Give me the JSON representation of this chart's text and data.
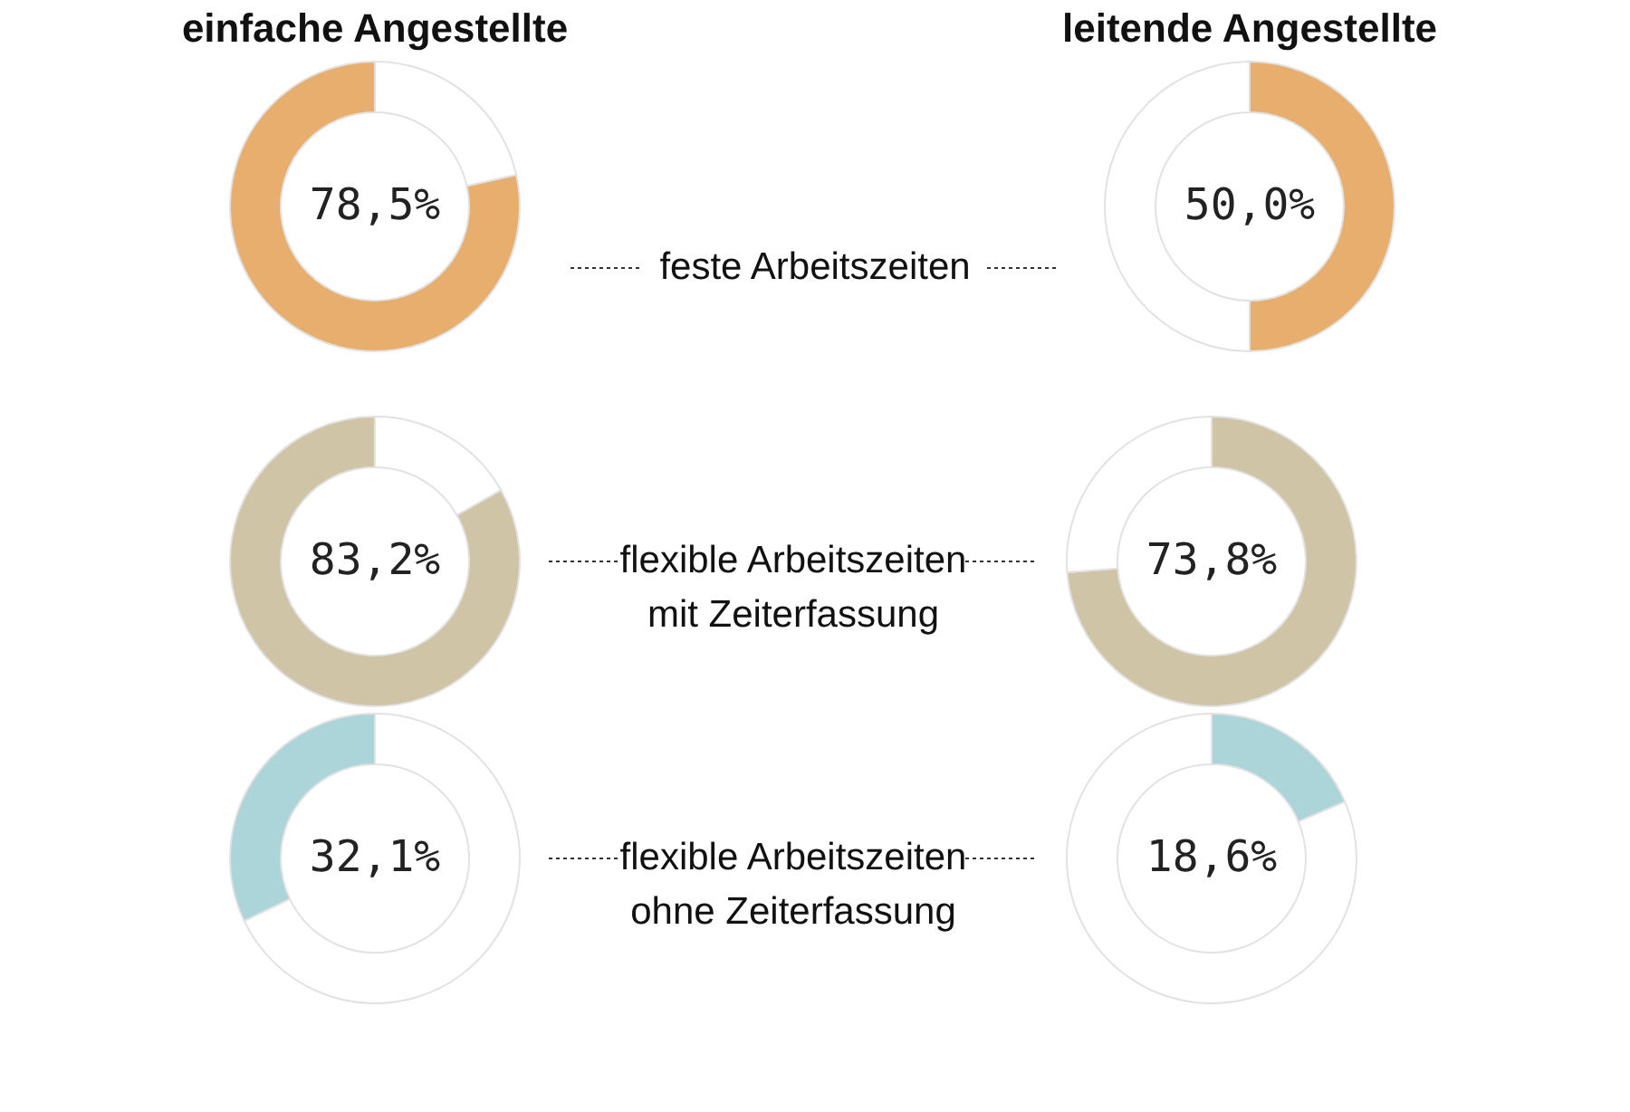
{
  "chart_data": [
    {
      "type": "donut",
      "title": "einfache Angestellte",
      "categories": [
        null,
        null
      ],
      "values": [
        78.5,
        21.5
      ],
      "colors": [
        "#e8ae6e",
        "#ffffff"
      ],
      "value_labels": [
        "78,5%",
        null
      ],
      "annotations": [
        "feste Arbeitszeiten"
      ]
    },
    {
      "type": "donut",
      "title": "leitende Angestellte",
      "categories": [
        null,
        null
      ],
      "values": [
        50.0,
        50.0
      ],
      "colors": [
        "#e8ae6e",
        "#ffffff"
      ],
      "value_labels": [
        "50,0%",
        null
      ]
    },
    {
      "type": "donut",
      "categories": [
        null,
        null
      ],
      "values": [
        83.2,
        16.8
      ],
      "colors": [
        "#cfc4a6",
        "#ffffff"
      ],
      "value_labels": [
        "83,2%",
        null
      ],
      "annotations": [
        "flexible Arbeitszeiten\nmit Zeiterfassung"
      ]
    },
    {
      "type": "donut",
      "categories": [
        null,
        null
      ],
      "values": [
        73.8,
        26.2
      ],
      "colors": [
        "#cfc4a6",
        "#ffffff"
      ],
      "value_labels": [
        "73,8%",
        null
      ]
    },
    {
      "type": "donut",
      "categories": [
        null,
        null
      ],
      "values": [
        32.1,
        67.9
      ],
      "colors": [
        "#acd5da",
        "#ffffff"
      ],
      "value_labels": [
        "32,1%",
        null
      ],
      "annotations": [
        "flexible Arbeitszeiten\nohne Zeiterfassung"
      ]
    },
    {
      "type": "donut",
      "categories": [
        null,
        null
      ],
      "values": [
        18.6,
        81.4
      ],
      "colors": [
        "#acd5da",
        "#ffffff"
      ],
      "value_labels": [
        "18,6%",
        null
      ]
    }
  ]
}
